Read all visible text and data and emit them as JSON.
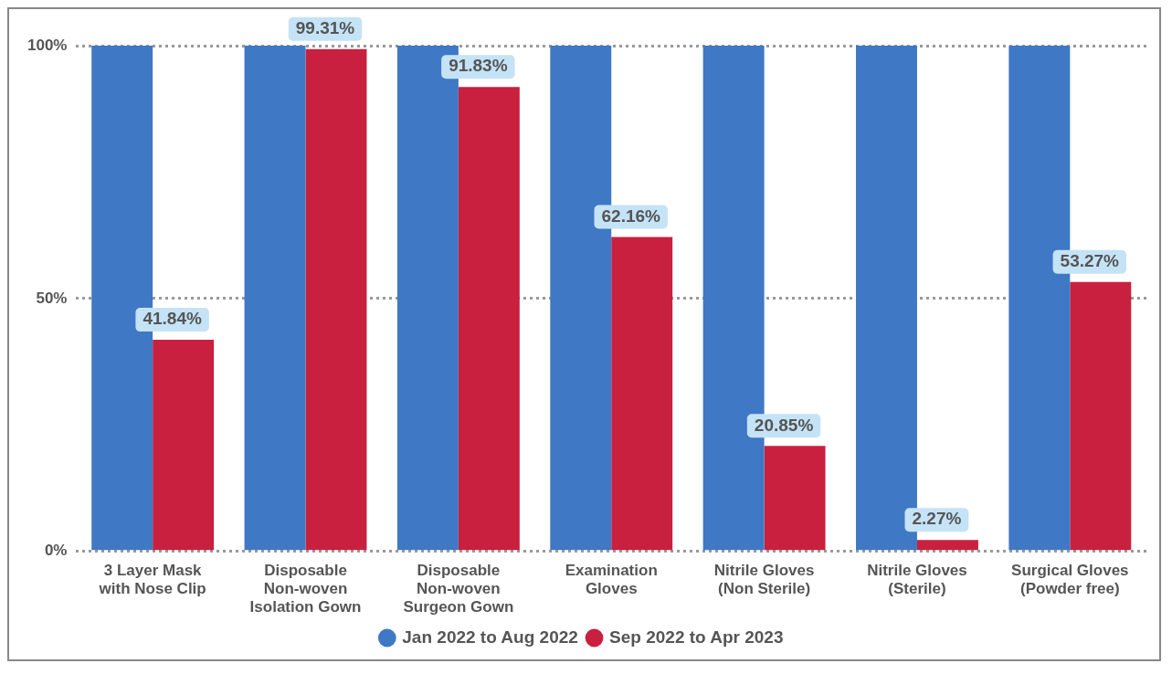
{
  "chart_data": {
    "type": "bar",
    "categories": [
      "3 Layer Mask with Nose Clip",
      "Disposable Non-woven Isolation Gown",
      "Disposable Non-woven Surgeon Gown",
      "Examination Gloves",
      "Nitrile Gloves (Non Sterile)",
      "Nitrile Gloves (Sterile)",
      "Surgical Gloves (Powder free)"
    ],
    "series": [
      {
        "name": "Jan 2022 to Aug 2022",
        "color": "#3f78c4",
        "values": [
          100,
          100,
          100,
          100,
          100,
          100,
          100
        ]
      },
      {
        "name": "Sep 2022 to Apr 2023",
        "color": "#c8203e",
        "values": [
          41.84,
          99.31,
          91.83,
          62.16,
          20.85,
          2.27,
          53.27
        ],
        "value_labels": [
          "41.84%",
          "99.31%",
          "91.83%",
          "62.16%",
          "20.85%",
          "2.27%",
          "53.27%"
        ]
      }
    ],
    "ylim": [
      0,
      100
    ],
    "yticks": [
      {
        "value": 0,
        "label": "0%"
      },
      {
        "value": 50,
        "label": "50%"
      },
      {
        "value": 100,
        "label": "100%"
      }
    ],
    "grid": "y",
    "legend": "bottom"
  }
}
